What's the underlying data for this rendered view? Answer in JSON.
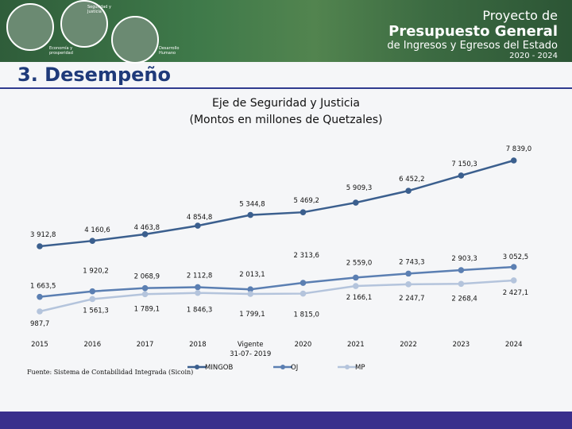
{
  "banner": {
    "title_line1": "Proyecto de",
    "title_line2": "Presupuesto General",
    "title_line3": "de Ingresos y Egresos del Estado",
    "title_line4": "2020 - 2024",
    "pillar1": "Seguridad y Justicia",
    "pillar2": "Economía y prosperidad",
    "pillar3": "Desarrollo Humano"
  },
  "section_title": "3. Desempeño",
  "source_note": "Fuente: Sistema de Contabilidad Integrada (Sicoin)",
  "colors": {
    "mingob": "#3b5f8e",
    "oj": "#5b7fb2",
    "mp": "#b4c4dc",
    "header_line": "#2f3b8f",
    "footer_bar": "#3a2f8c"
  },
  "chart_data": {
    "type": "line",
    "title_line1": "Eje de Seguridad y Justicia",
    "title_line2": "(Montos en millones de Quetzales)",
    "categories": [
      "2015",
      "2016",
      "2017",
      "2018",
      "Vigente\n31-07- 2019",
      "2020",
      "2021",
      "2022",
      "2023",
      "2024"
    ],
    "series": [
      {
        "name": "MINGOB",
        "values": [
          3912.8,
          4160.6,
          4463.8,
          4854.8,
          5344.8,
          5469.2,
          5909.3,
          6452.2,
          7150.3,
          7839.0
        ],
        "labels": [
          "3 912,8",
          "4 160,6",
          "4 463,8",
          "4 854,8",
          "5 344,8",
          "5 469,2",
          "5 909,3",
          "6 452,2",
          "7 150,3",
          "7 839,0"
        ]
      },
      {
        "name": "OJ",
        "values": [
          1663.5,
          1920.2,
          2068.9,
          2112.8,
          2013.1,
          2313.6,
          2559.0,
          2743.3,
          2903.3,
          3052.5
        ],
        "labels": [
          "1 663,5",
          "1 920,2",
          "2 068,9",
          "2 112,8",
          "2 013,1",
          "2 313,6",
          "2 559,0",
          "2 743,3",
          "2 903,3",
          "3 052,5"
        ]
      },
      {
        "name": "MP",
        "values": [
          987.7,
          1561.3,
          1789.1,
          1846.3,
          1799.1,
          1815.0,
          2166.1,
          2247.7,
          2268.4,
          2427.1
        ],
        "labels": [
          "987,7",
          "1 561,3",
          "1 789,1",
          "1 846,3",
          "1 799,1",
          "1 815,0",
          "2 166,1",
          "2 247,7",
          "2 268,4",
          "2 427,1"
        ]
      }
    ],
    "legend_position": "bottom",
    "grid": false
  }
}
